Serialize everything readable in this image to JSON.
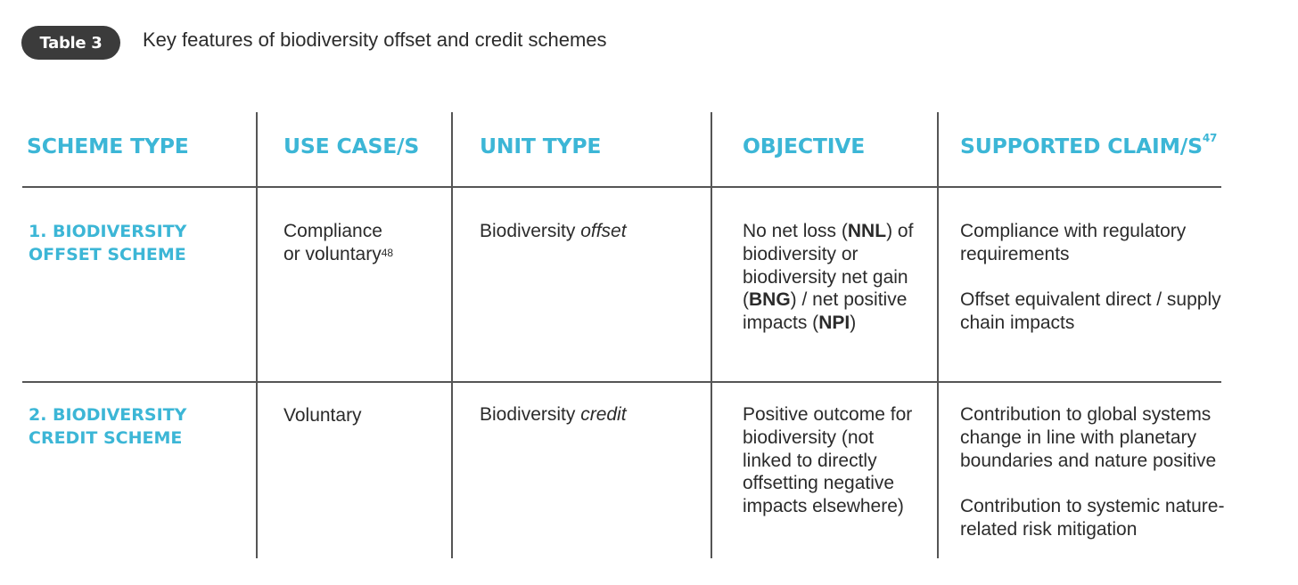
{
  "badge": "Table 3",
  "title": "Key features of biodiversity offset and credit schemes",
  "headers": {
    "scheme_type": "SCHEME TYPE",
    "use_case": "USE CASE/S",
    "unit_type": "UNIT TYPE",
    "objective": "OBJECTIVE",
    "supported_claim": "SUPPORTED CLAIM/S",
    "supported_claim_sup": "47"
  },
  "rows": [
    {
      "scheme_line1": "1. BIODIVERSITY",
      "scheme_line2": "OFFSET SCHEME",
      "use_line1": "Compliance",
      "use_line2": "or voluntary",
      "use_sup": "48",
      "unit_prefix": "Biodiversity ",
      "unit_italic": "offset",
      "objective": {
        "t1": "No net loss (",
        "b1": "NNL",
        "t2": ") of biodiversity or biodiversity net gain (",
        "b2": "BNG",
        "t3": ") / net positive impacts (",
        "b3": "NPI",
        "t4": ")"
      },
      "claim1": "Compliance with regulatory requirements",
      "claim2": "Offset equivalent direct / supply chain impacts"
    },
    {
      "scheme_line1": "2. BIODIVERSITY",
      "scheme_line2": "CREDIT SCHEME",
      "use": "Voluntary",
      "unit_prefix": "Biodiversity ",
      "unit_italic": "credit",
      "objective": "Positive outcome for biodiversity (not linked to directly offsetting negative impacts elsewhere)",
      "claim1": "Contribution to global systems change in line with planetary boundaries and nature positive",
      "claim2": "Contribution to systemic nature-related risk mitigation"
    }
  ]
}
